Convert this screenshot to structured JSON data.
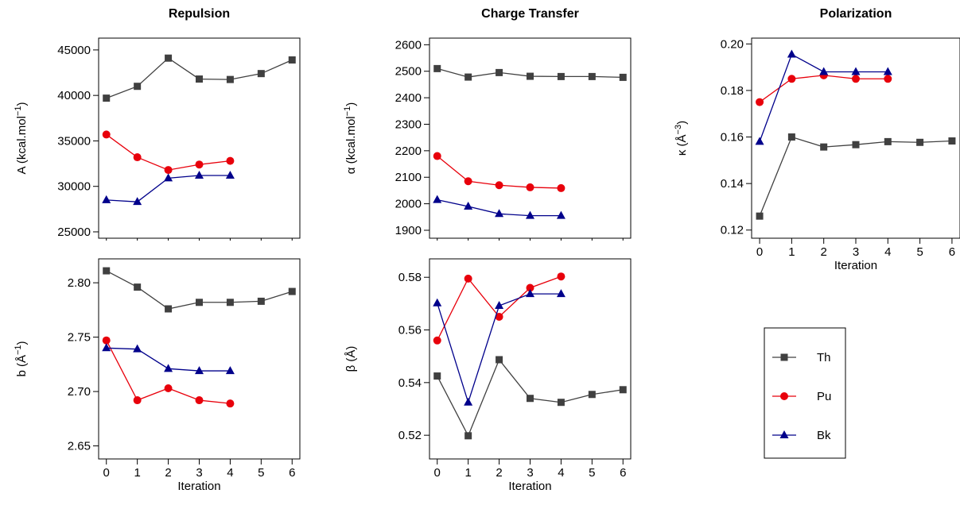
{
  "colors": {
    "Th": "#404040",
    "Pu": "#e8000b",
    "Bk": "#00008b"
  },
  "legend": {
    "entries": [
      {
        "name": "Th",
        "marker": "square"
      },
      {
        "name": "Pu",
        "marker": "circle"
      },
      {
        "name": "Bk",
        "marker": "triangle"
      }
    ]
  },
  "chart_data": [
    {
      "id": "repulsion-A",
      "type": "line",
      "title": "Repulsion",
      "ylabel": {
        "main": "A (kcal.mol",
        "sup": "−1",
        "tail": ")"
      },
      "xlabel": "",
      "ylim": [
        24300,
        46300
      ],
      "xlim": [
        -0.25,
        6.25
      ],
      "yticks": [
        25000,
        30000,
        35000,
        40000,
        45000
      ],
      "xticks": [],
      "series": [
        {
          "name": "Th",
          "marker": "square",
          "x": [
            0,
            1,
            2,
            3,
            4,
            5,
            6
          ],
          "y": [
            39700,
            41000,
            44100,
            41800,
            41750,
            42400,
            43900
          ]
        },
        {
          "name": "Pu",
          "marker": "circle",
          "x": [
            0,
            1,
            2,
            3,
            4
          ],
          "y": [
            35700,
            33200,
            31800,
            32400,
            32800
          ]
        },
        {
          "name": "Bk",
          "marker": "triangle",
          "x": [
            0,
            1,
            2,
            3,
            4
          ],
          "y": [
            28500,
            28300,
            30900,
            31200,
            31200
          ]
        }
      ]
    },
    {
      "id": "repulsion-b",
      "type": "line",
      "title": "",
      "ylabel": {
        "main": "b (Å",
        "sup": "−1",
        "tail": ")"
      },
      "xlabel": "Iteration",
      "ylim": [
        2.638,
        2.822
      ],
      "xlim": [
        -0.25,
        6.25
      ],
      "yticks": [
        2.65,
        2.7,
        2.75,
        2.8
      ],
      "ytick_labels": [
        "2.65",
        "2.70",
        "2.75",
        "2.80"
      ],
      "xticks": [
        0,
        1,
        2,
        3,
        4,
        5,
        6
      ],
      "series": [
        {
          "name": "Th",
          "marker": "square",
          "x": [
            0,
            1,
            2,
            3,
            4,
            5,
            6
          ],
          "y": [
            2.811,
            2.796,
            2.776,
            2.782,
            2.782,
            2.783,
            2.792
          ]
        },
        {
          "name": "Pu",
          "marker": "circle",
          "x": [
            0,
            1,
            2,
            3,
            4
          ],
          "y": [
            2.747,
            2.692,
            2.703,
            2.692,
            2.689
          ]
        },
        {
          "name": "Bk",
          "marker": "triangle",
          "x": [
            0,
            1,
            2,
            3,
            4
          ],
          "y": [
            2.74,
            2.739,
            2.721,
            2.719,
            2.719
          ]
        }
      ]
    },
    {
      "id": "charge-alpha",
      "type": "line",
      "title": "Charge Transfer",
      "ylabel": {
        "main": "α (kcal.mol",
        "sup": "−1",
        "tail": ")"
      },
      "xlabel": "",
      "ylim": [
        1870,
        2625
      ],
      "xlim": [
        -0.25,
        6.25
      ],
      "yticks": [
        1900,
        2000,
        2100,
        2200,
        2300,
        2400,
        2500,
        2600
      ],
      "xticks": [],
      "series": [
        {
          "name": "Th",
          "marker": "square",
          "x": [
            0,
            1,
            2,
            3,
            4,
            5,
            6
          ],
          "y": [
            2510,
            2478,
            2495,
            2481,
            2480,
            2480,
            2477
          ]
        },
        {
          "name": "Pu",
          "marker": "circle",
          "x": [
            0,
            1,
            2,
            3,
            4
          ],
          "y": [
            2180,
            2085,
            2070,
            2062,
            2059
          ]
        },
        {
          "name": "Bk",
          "marker": "triangle",
          "x": [
            0,
            1,
            2,
            3,
            4
          ],
          "y": [
            2015,
            1990,
            1962,
            1955,
            1955
          ]
        }
      ]
    },
    {
      "id": "charge-beta",
      "type": "line",
      "title": "",
      "ylabel": {
        "main": "β (Å)",
        "sup": "",
        "tail": ""
      },
      "xlabel": "Iteration",
      "ylim": [
        0.511,
        0.587
      ],
      "xlim": [
        -0.25,
        6.25
      ],
      "yticks": [
        0.52,
        0.54,
        0.56,
        0.58
      ],
      "ytick_labels": [
        "0.52",
        "0.54",
        "0.56",
        "0.58"
      ],
      "xticks": [
        0,
        1,
        2,
        3,
        4,
        5,
        6
      ],
      "series": [
        {
          "name": "Th",
          "marker": "square",
          "x": [
            0,
            1,
            2,
            3,
            4,
            5,
            6
          ],
          "y": [
            0.5425,
            0.5198,
            0.5487,
            0.534,
            0.5325,
            0.5355,
            0.5373
          ]
        },
        {
          "name": "Pu",
          "marker": "circle",
          "x": [
            0,
            1,
            2,
            3,
            4
          ],
          "y": [
            0.556,
            0.5795,
            0.565,
            0.576,
            0.5803
          ]
        },
        {
          "name": "Bk",
          "marker": "triangle",
          "x": [
            0,
            1,
            2,
            3,
            4
          ],
          "y": [
            0.5702,
            0.5325,
            0.5692,
            0.5737,
            0.5737
          ]
        }
      ]
    },
    {
      "id": "polarization-kappa",
      "type": "line",
      "title": "Polarization",
      "ylabel": {
        "main": "κ (Å",
        "sup": "−3",
        "tail": ")"
      },
      "xlabel": "Iteration",
      "ylim": [
        0.1165,
        0.2025
      ],
      "xlim": [
        -0.25,
        6.25
      ],
      "yticks": [
        0.12,
        0.14,
        0.16,
        0.18,
        0.2
      ],
      "ytick_labels": [
        "0.12",
        "0.14",
        "0.16",
        "0.18",
        "0.20"
      ],
      "xticks": [
        0,
        1,
        2,
        3,
        4,
        5,
        6
      ],
      "series": [
        {
          "name": "Th",
          "marker": "square",
          "x": [
            0,
            1,
            2,
            3,
            4,
            5,
            6
          ],
          "y": [
            0.126,
            0.16,
            0.1557,
            0.1567,
            0.158,
            0.1577,
            0.1583
          ]
        },
        {
          "name": "Pu",
          "marker": "circle",
          "x": [
            0,
            1,
            2,
            3,
            4
          ],
          "y": [
            0.175,
            0.185,
            0.1865,
            0.185,
            0.185
          ]
        },
        {
          "name": "Bk",
          "marker": "triangle",
          "x": [
            0,
            1,
            2,
            3,
            4
          ],
          "y": [
            0.158,
            0.1955,
            0.188,
            0.188,
            0.188
          ]
        }
      ]
    }
  ]
}
